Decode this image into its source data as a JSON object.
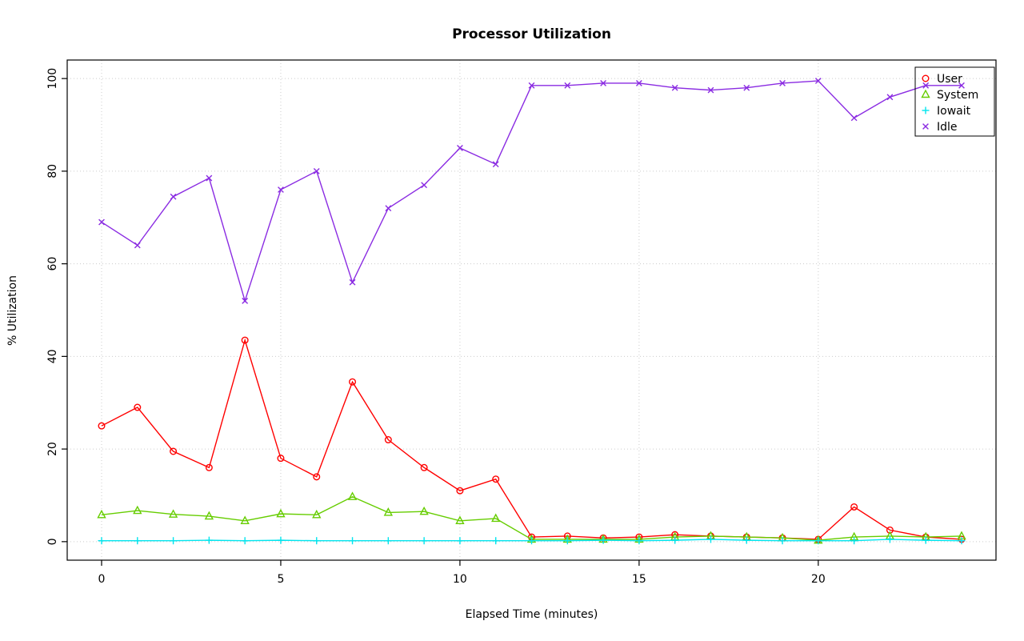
{
  "chart_data": {
    "type": "line",
    "title": "Processor Utilization",
    "xlabel": "Elapsed Time (minutes)",
    "ylabel": "% Utilization",
    "xlim": [
      0,
      24
    ],
    "ylim": [
      0,
      100
    ],
    "xticks": [
      0,
      5,
      10,
      15,
      20
    ],
    "yticks": [
      0,
      20,
      40,
      60,
      80,
      100
    ],
    "grid": true,
    "grid_style": "dotted",
    "grid_color": "#cccccc",
    "legend_position": "top-right",
    "x": [
      0,
      1,
      2,
      3,
      4,
      5,
      6,
      7,
      8,
      9,
      10,
      11,
      12,
      13,
      14,
      15,
      16,
      17,
      18,
      19,
      20,
      21,
      22,
      23,
      24
    ],
    "series": [
      {
        "name": "User",
        "color": "#ff0000",
        "marker": "circle",
        "values": [
          25,
          29,
          19.5,
          16,
          43.5,
          18,
          14,
          34.5,
          22,
          16,
          11,
          13.5,
          1,
          1.2,
          0.8,
          1,
          1.5,
          1.2,
          1,
          0.8,
          0.5,
          7.5,
          2.5,
          1,
          0.5
        ]
      },
      {
        "name": "System",
        "color": "#66cd00",
        "marker": "triangle",
        "values": [
          5.8,
          6.7,
          5.9,
          5.5,
          4.5,
          6,
          5.8,
          9.7,
          6.3,
          6.5,
          4.5,
          5,
          0.5,
          0.5,
          0.5,
          0.5,
          1,
          1.2,
          1,
          0.8,
          0.3,
          1,
          1.2,
          1,
          1.2
        ]
      },
      {
        "name": "Iowait",
        "color": "#00e5ee",
        "marker": "plus",
        "values": [
          0.2,
          0.2,
          0.2,
          0.3,
          0.2,
          0.3,
          0.2,
          0.2,
          0.2,
          0.2,
          0.2,
          0.2,
          0.2,
          0.2,
          0.3,
          0.2,
          0.3,
          0.5,
          0.3,
          0.2,
          0.2,
          0.2,
          0.5,
          0.3,
          0.2
        ]
      },
      {
        "name": "Idle",
        "color": "#8a2be2",
        "marker": "x",
        "values": [
          69,
          64,
          74.5,
          78.5,
          52,
          76,
          80,
          56,
          72,
          77,
          85,
          81.5,
          98.5,
          98.5,
          99,
          99,
          98,
          97.5,
          98,
          99,
          99.5,
          91.5,
          96,
          98.5,
          98.5
        ]
      }
    ]
  }
}
